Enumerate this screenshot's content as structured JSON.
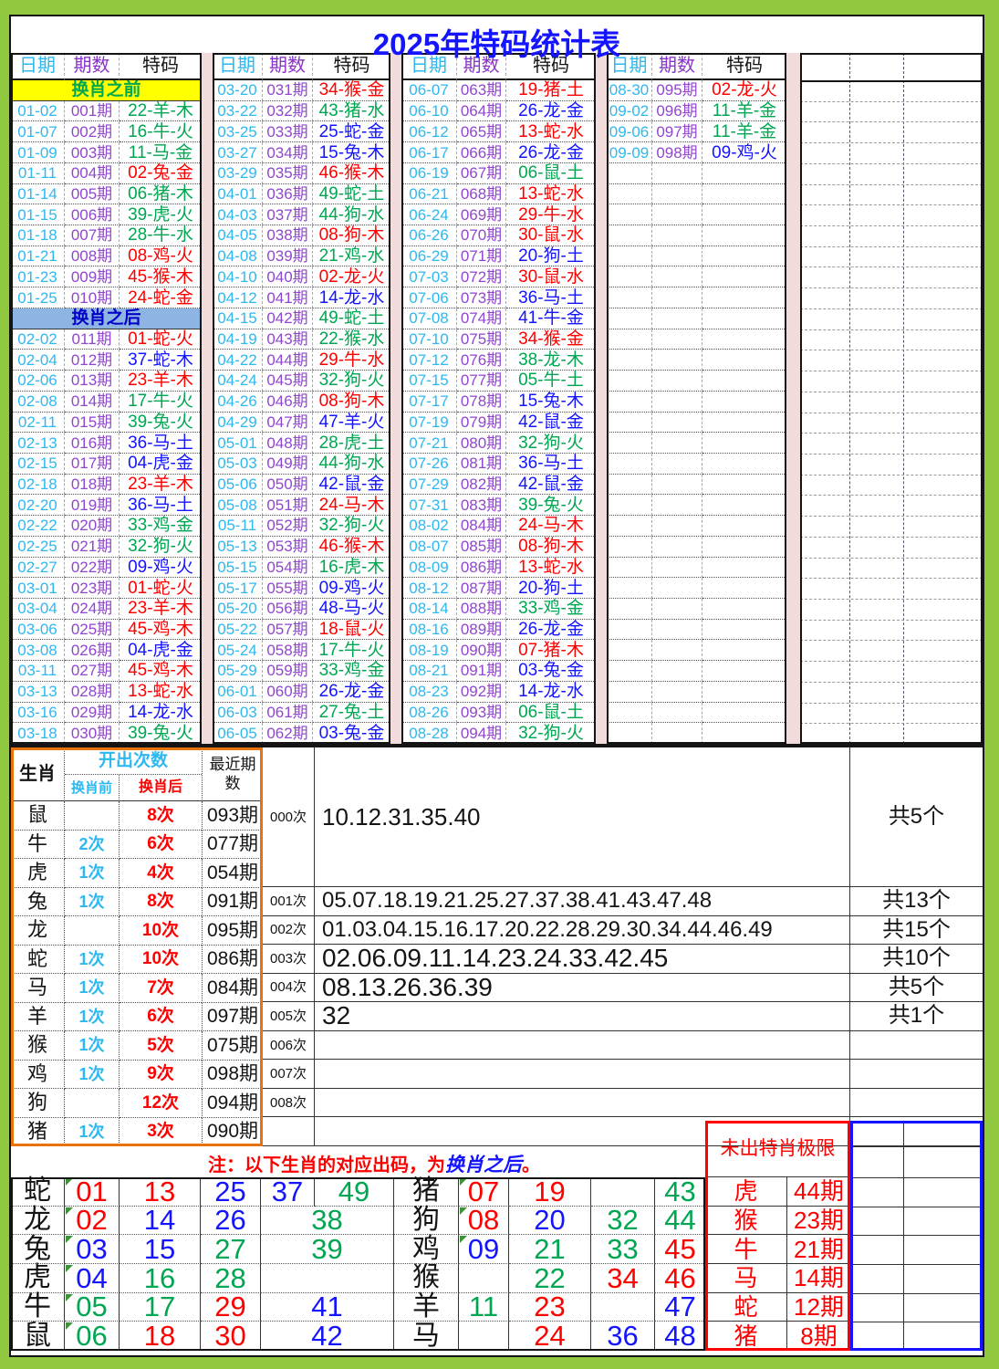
{
  "title": "2025年特码统计表",
  "note": {
    "prefix": "注：以下生肖的对应出码，为",
    "highlight": "换肖之后",
    "suffix": "。"
  },
  "colors": {
    "page_border": "#90C840",
    "pink_gap": "#F2DBDB",
    "title_blue": "#1414FF",
    "date_cyan": "#2EB8F0",
    "period_purple": "#9146D0",
    "header_purple": "#8A35C8",
    "red": "#FE0000",
    "blue": "#1414FF",
    "green": "#00A651",
    "yellow_banner_bg": "#FFFF00",
    "banner_green_text": "#00A84F",
    "blue_banner_bg": "#8DB4E2",
    "banner_blue_text": "#0000C8",
    "orange_border": "#E8720C",
    "black": "#141414"
  },
  "wave": {
    "red": [
      1,
      2,
      7,
      8,
      12,
      13,
      18,
      19,
      23,
      24,
      29,
      30,
      34,
      35,
      40,
      45,
      46
    ],
    "blue": [
      3,
      4,
      9,
      10,
      14,
      15,
      20,
      25,
      26,
      31,
      36,
      37,
      41,
      42,
      47,
      48
    ],
    "green": [
      5,
      6,
      11,
      16,
      17,
      21,
      22,
      27,
      28,
      32,
      33,
      38,
      39,
      43,
      44,
      49
    ]
  },
  "main_table": {
    "column_headers": [
      "日期",
      "期数",
      "特码"
    ],
    "groups": [
      {
        "rows": [
          {
            "banner": "换肖之前",
            "variant": "yellow"
          },
          [
            "01-02",
            "001期",
            "22-羊-木"
          ],
          [
            "01-07",
            "002期",
            "16-牛-火"
          ],
          [
            "01-09",
            "003期",
            "11-马-金"
          ],
          [
            "01-11",
            "004期",
            "02-兔-金"
          ],
          [
            "01-14",
            "005期",
            "06-猪-木"
          ],
          [
            "01-15",
            "006期",
            "39-虎-火"
          ],
          [
            "01-18",
            "007期",
            "28-牛-水"
          ],
          [
            "01-21",
            "008期",
            "08-鸡-火"
          ],
          [
            "01-23",
            "009期",
            "45-猴-木"
          ],
          [
            "01-25",
            "010期",
            "24-蛇-金"
          ],
          {
            "banner": "换肖之后",
            "variant": "blue"
          },
          [
            "02-02",
            "011期",
            "01-蛇-火"
          ],
          [
            "02-04",
            "012期",
            "37-蛇-木"
          ],
          [
            "02-06",
            "013期",
            "23-羊-木"
          ],
          [
            "02-08",
            "014期",
            "17-牛-火"
          ],
          [
            "02-11",
            "015期",
            "39-兔-火"
          ],
          [
            "02-13",
            "016期",
            "36-马-土"
          ],
          [
            "02-15",
            "017期",
            "04-虎-金"
          ],
          [
            "02-18",
            "018期",
            "23-羊-木"
          ],
          [
            "02-20",
            "019期",
            "36-马-土"
          ],
          [
            "02-22",
            "020期",
            "33-鸡-金"
          ],
          [
            "02-25",
            "021期",
            "32-狗-火"
          ],
          [
            "02-27",
            "022期",
            "09-鸡-火"
          ],
          [
            "03-01",
            "023期",
            "01-蛇-火"
          ],
          [
            "03-04",
            "024期",
            "23-羊-木"
          ],
          [
            "03-06",
            "025期",
            "45-鸡-木"
          ],
          [
            "03-08",
            "026期",
            "04-虎-金"
          ],
          [
            "03-11",
            "027期",
            "45-鸡-木"
          ],
          [
            "03-13",
            "028期",
            "13-蛇-水"
          ],
          [
            "03-16",
            "029期",
            "14-龙-水"
          ],
          [
            "03-18",
            "030期",
            "39-兔-火"
          ]
        ]
      },
      {
        "rows": [
          [
            "03-20",
            "031期",
            "34-猴-金"
          ],
          [
            "03-22",
            "032期",
            "43-猪-水"
          ],
          [
            "03-25",
            "033期",
            "25-蛇-金"
          ],
          [
            "03-27",
            "034期",
            "15-兔-木"
          ],
          [
            "03-29",
            "035期",
            "46-猴-木"
          ],
          [
            "04-01",
            "036期",
            "49-蛇-土"
          ],
          [
            "04-03",
            "037期",
            "44-狗-水"
          ],
          [
            "04-05",
            "038期",
            "08-狗-木"
          ],
          [
            "04-08",
            "039期",
            "21-鸡-水"
          ],
          [
            "04-10",
            "040期",
            "02-龙-火"
          ],
          [
            "04-12",
            "041期",
            "14-龙-水"
          ],
          [
            "04-15",
            "042期",
            "49-蛇-土"
          ],
          [
            "04-19",
            "043期",
            "22-猴-水"
          ],
          [
            "04-22",
            "044期",
            "29-牛-水"
          ],
          [
            "04-24",
            "045期",
            "32-狗-火"
          ],
          [
            "04-26",
            "046期",
            "08-狗-木"
          ],
          [
            "04-29",
            "047期",
            "47-羊-火"
          ],
          [
            "05-01",
            "048期",
            "28-虎-土"
          ],
          [
            "05-03",
            "049期",
            "44-狗-水"
          ],
          [
            "05-06",
            "050期",
            "42-鼠-金"
          ],
          [
            "05-08",
            "051期",
            "24-马-木"
          ],
          [
            "05-11",
            "052期",
            "32-狗-火"
          ],
          [
            "05-13",
            "053期",
            "46-猴-木"
          ],
          [
            "05-15",
            "054期",
            "16-虎-木"
          ],
          [
            "05-17",
            "055期",
            "09-鸡-火"
          ],
          [
            "05-20",
            "056期",
            "48-马-火"
          ],
          [
            "05-22",
            "057期",
            "18-鼠-火"
          ],
          [
            "05-24",
            "058期",
            "17-牛-火"
          ],
          [
            "05-29",
            "059期",
            "33-鸡-金"
          ],
          [
            "06-01",
            "060期",
            "26-龙-金"
          ],
          [
            "06-03",
            "061期",
            "27-兔-土"
          ],
          [
            "06-05",
            "062期",
            "03-兔-金"
          ]
        ]
      },
      {
        "rows": [
          [
            "06-07",
            "063期",
            "19-猪-土"
          ],
          [
            "06-10",
            "064期",
            "26-龙-金"
          ],
          [
            "06-12",
            "065期",
            "13-蛇-水"
          ],
          [
            "06-17",
            "066期",
            "26-龙-金"
          ],
          [
            "06-19",
            "067期",
            "06-鼠-土"
          ],
          [
            "06-21",
            "068期",
            "13-蛇-水"
          ],
          [
            "06-24",
            "069期",
            "29-牛-水"
          ],
          [
            "06-26",
            "070期",
            "30-鼠-水"
          ],
          [
            "06-29",
            "071期",
            "20-狗-土"
          ],
          [
            "07-03",
            "072期",
            "30-鼠-水"
          ],
          [
            "07-06",
            "073期",
            "36-马-土"
          ],
          [
            "07-08",
            "074期",
            "41-牛-金"
          ],
          [
            "07-10",
            "075期",
            "34-猴-金"
          ],
          [
            "07-12",
            "076期",
            "38-龙-木"
          ],
          [
            "07-15",
            "077期",
            "05-牛-土"
          ],
          [
            "07-17",
            "078期",
            "15-兔-木"
          ],
          [
            "07-19",
            "079期",
            "42-鼠-金"
          ],
          [
            "07-21",
            "080期",
            "32-狗-火"
          ],
          [
            "07-26",
            "081期",
            "36-马-土"
          ],
          [
            "07-29",
            "082期",
            "42-鼠-金"
          ],
          [
            "07-31",
            "083期",
            "39-兔-火"
          ],
          [
            "08-02",
            "084期",
            "24-马-木"
          ],
          [
            "08-07",
            "085期",
            "08-狗-木"
          ],
          [
            "08-09",
            "086期",
            "13-蛇-水"
          ],
          [
            "08-12",
            "087期",
            "20-狗-土"
          ],
          [
            "08-14",
            "088期",
            "33-鸡-金"
          ],
          [
            "08-16",
            "089期",
            "26-龙-金"
          ],
          [
            "08-19",
            "090期",
            "07-猪-木"
          ],
          [
            "08-21",
            "091期",
            "03-兔-金"
          ],
          [
            "08-23",
            "092期",
            "14-龙-水"
          ],
          [
            "08-26",
            "093期",
            "06-鼠-土"
          ],
          [
            "08-28",
            "094期",
            "32-狗-火"
          ]
        ]
      },
      {
        "rows": [
          [
            "08-30",
            "095期",
            "02-龙-火"
          ],
          [
            "09-02",
            "096期",
            "11-羊-金"
          ],
          [
            "09-06",
            "097期",
            "11-羊-金"
          ],
          [
            "09-09",
            "098期",
            "09-鸡-火"
          ]
        ]
      }
    ]
  },
  "stats_table": {
    "headers": {
      "zodiac": "生肖",
      "count": "开出次数",
      "before": "换肖前",
      "after": "换肖后",
      "recent": "最近期数"
    },
    "rows": [
      [
        "鼠",
        "",
        "8次",
        "093期"
      ],
      [
        "牛",
        "2次",
        "6次",
        "077期"
      ],
      [
        "虎",
        "1次",
        "4次",
        "054期"
      ],
      [
        "兔",
        "1次",
        "8次",
        "091期"
      ],
      [
        "龙",
        "",
        "10次",
        "095期"
      ],
      [
        "蛇",
        "1次",
        "10次",
        "086期"
      ],
      [
        "马",
        "1次",
        "7次",
        "084期"
      ],
      [
        "羊",
        "1次",
        "6次",
        "097期"
      ],
      [
        "猴",
        "1次",
        "5次",
        "075期"
      ],
      [
        "鸡",
        "1次",
        "9次",
        "098期"
      ],
      [
        "狗",
        "",
        "12次",
        "094期"
      ],
      [
        "猪",
        "1次",
        "3次",
        "090期"
      ]
    ]
  },
  "frequency_lists": {
    "rows": [
      {
        "label": "000次",
        "numbers": "10.12.31.35.40",
        "total": "共5个"
      },
      {
        "label": "001次",
        "numbers": "05.07.18.19.21.25.27.37.38.41.43.47.48",
        "total": "共13个"
      },
      {
        "label": "002次",
        "numbers": "01.03.04.15.16.17.20.22.28.29.30.34.44.46.49",
        "total": "共15个"
      },
      {
        "label": "003次",
        "numbers": "02.06.09.11.14.23.24.33.42.45",
        "total": "共10个"
      },
      {
        "label": "004次",
        "numbers": "08.13.26.36.39",
        "total": "共5个"
      },
      {
        "label": "005次",
        "numbers": "32",
        "total": "共1个"
      },
      {
        "label": "006次",
        "numbers": "",
        "total": ""
      },
      {
        "label": "007次",
        "numbers": "",
        "total": ""
      },
      {
        "label": "008次",
        "numbers": "",
        "total": ""
      }
    ]
  },
  "mapping_table": {
    "left": [
      {
        "zodiac": "蛇",
        "cells": [
          "01",
          "13",
          "25",
          "37",
          "49"
        ]
      },
      {
        "zodiac": "龙",
        "cells": [
          "02",
          "14",
          "26",
          "38"
        ]
      },
      {
        "zodiac": "兔",
        "cells": [
          "03",
          "15",
          "27",
          "39"
        ]
      },
      {
        "zodiac": "虎",
        "cells": [
          "04",
          "16",
          "28",
          ""
        ]
      },
      {
        "zodiac": "牛",
        "cells": [
          "05",
          "17",
          "29",
          "41"
        ]
      },
      {
        "zodiac": "鼠",
        "cells": [
          "06",
          "18",
          "30",
          "42"
        ]
      }
    ],
    "right": [
      {
        "zodiac": "猪",
        "cells": [
          "07",
          "19",
          "",
          "43"
        ]
      },
      {
        "zodiac": "狗",
        "cells": [
          "08",
          "20",
          "32",
          "44"
        ]
      },
      {
        "zodiac": "鸡",
        "cells": [
          "09",
          "21",
          "33",
          "45"
        ]
      },
      {
        "zodiac": "猴",
        "cells": [
          "",
          "22",
          "34",
          "46"
        ]
      },
      {
        "zodiac": "羊",
        "cells": [
          "11",
          "23",
          "",
          "47"
        ]
      },
      {
        "zodiac": "马",
        "cells": [
          "",
          "24",
          "36",
          "48"
        ]
      }
    ]
  },
  "limit_box": {
    "title": "未出特肖极限",
    "rows": [
      {
        "zodiac": "虎",
        "periods": "44期"
      },
      {
        "zodiac": "猴",
        "periods": "23期"
      },
      {
        "zodiac": "牛",
        "periods": "21期"
      },
      {
        "zodiac": "马",
        "periods": "14期"
      },
      {
        "zodiac": "蛇",
        "periods": "12期"
      },
      {
        "zodiac": "猪",
        "periods": "8期"
      }
    ]
  }
}
